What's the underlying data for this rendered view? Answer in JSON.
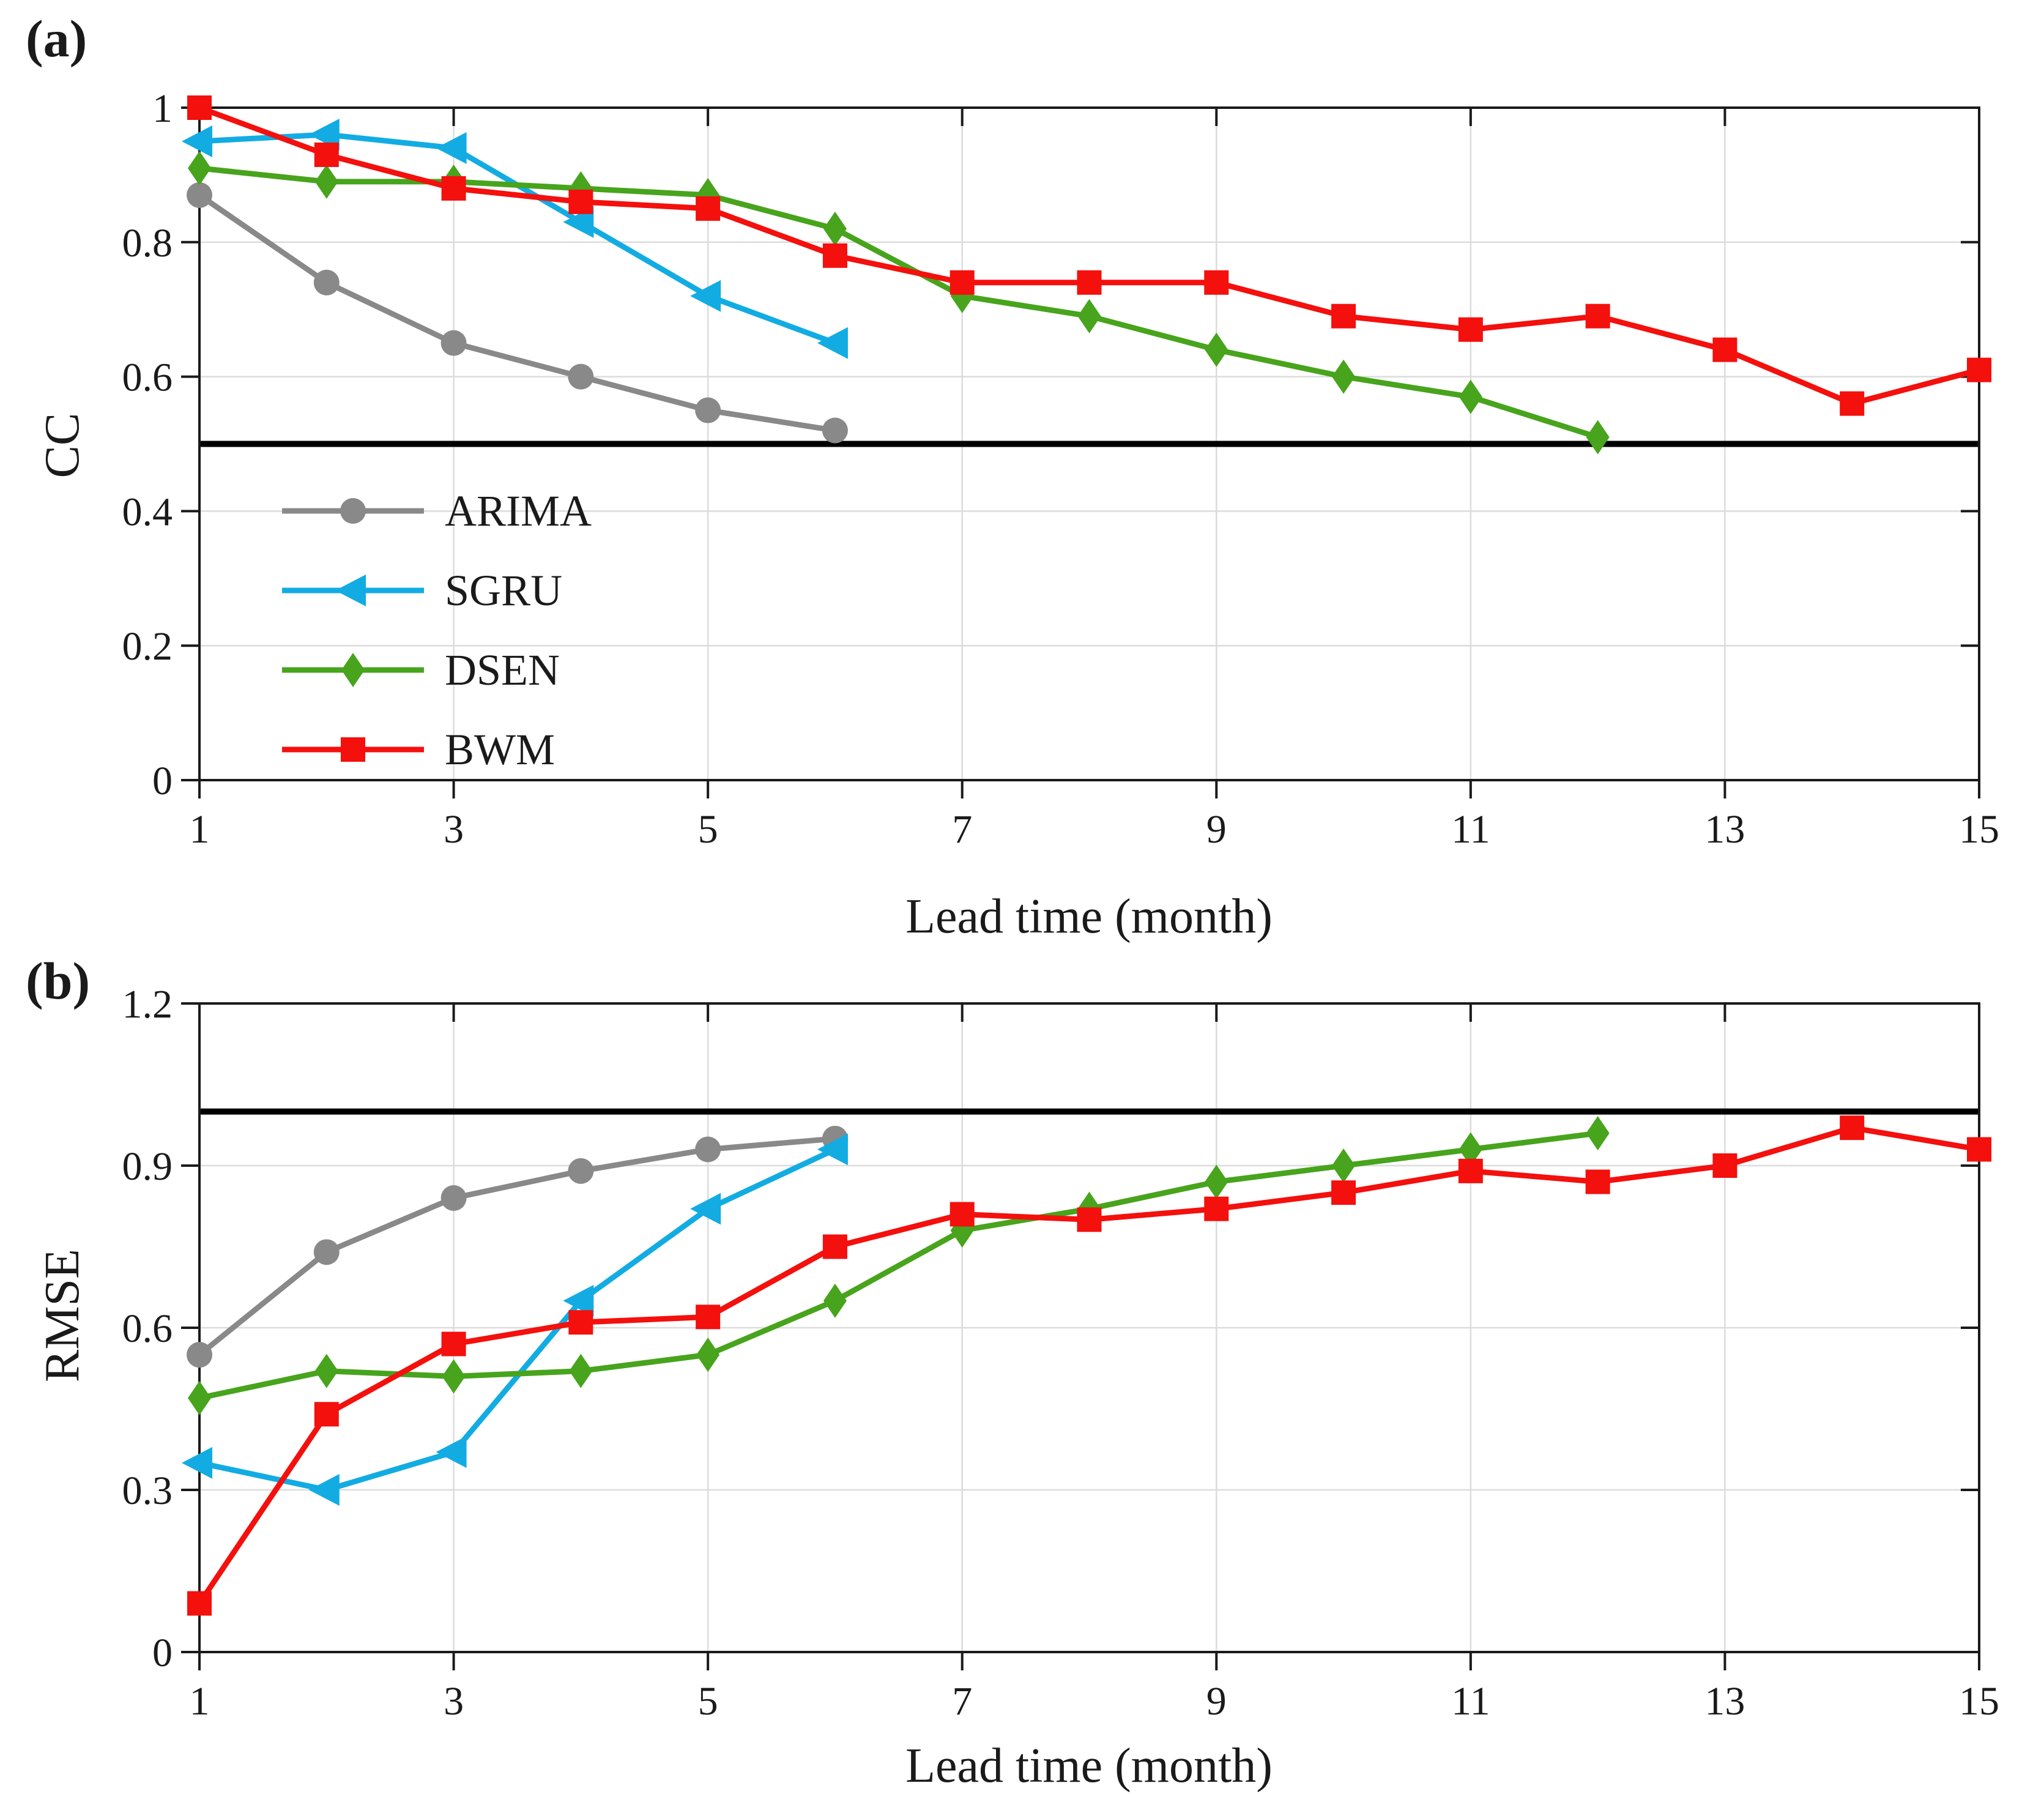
{
  "figure": {
    "background": "#ffffff"
  },
  "panels": [
    {
      "tag": "(a)"
    },
    {
      "tag": "(b)"
    }
  ],
  "legend": {
    "position": "inside-lower-left",
    "entries": [
      "ARIMA",
      "SGRU",
      "DSEN",
      "BWM"
    ]
  },
  "chart_data": [
    {
      "type": "line",
      "panel_label": "(a)",
      "xlabel": "Lead time (month)",
      "ylabel": "CC",
      "xlim": [
        1,
        15
      ],
      "ylim": [
        0,
        1
      ],
      "xticks": [
        1,
        3,
        5,
        7,
        9,
        11,
        13,
        15
      ],
      "yticks": [
        0,
        0.2,
        0.4,
        0.6,
        0.8,
        1
      ],
      "ytick_labels": [
        "0",
        "0.2",
        "0.4",
        "0.6",
        "0.8",
        "1"
      ],
      "grid": true,
      "reference_line_y": 0.5,
      "reference_line_color": "#000000",
      "legend_shown": true,
      "series": [
        {
          "name": "ARIMA",
          "color": "#898989",
          "marker": "circle",
          "x": [
            1,
            2,
            3,
            4,
            5,
            6
          ],
          "values": [
            0.87,
            0.74,
            0.65,
            0.6,
            0.55,
            0.52
          ]
        },
        {
          "name": "SGRU",
          "color": "#12ACE3",
          "marker": "triangle-left",
          "x": [
            1,
            2,
            3,
            4,
            5,
            6
          ],
          "values": [
            0.95,
            0.96,
            0.94,
            0.83,
            0.72,
            0.65
          ]
        },
        {
          "name": "DSEN",
          "color": "#47A41C",
          "marker": "diamond",
          "x": [
            1,
            2,
            3,
            4,
            5,
            6,
            7,
            8,
            9,
            10,
            11,
            12
          ],
          "values": [
            0.91,
            0.89,
            0.89,
            0.88,
            0.87,
            0.82,
            0.72,
            0.69,
            0.64,
            0.6,
            0.57,
            0.51
          ]
        },
        {
          "name": "BWM",
          "color": "#F3100D",
          "marker": "square",
          "x": [
            1,
            2,
            3,
            4,
            5,
            6,
            7,
            8,
            9,
            10,
            11,
            12,
            13,
            14,
            15
          ],
          "values": [
            1.0,
            0.93,
            0.88,
            0.86,
            0.85,
            0.78,
            0.74,
            0.74,
            0.74,
            0.69,
            0.67,
            0.69,
            0.64,
            0.56,
            0.61
          ]
        }
      ]
    },
    {
      "type": "line",
      "panel_label": "(b)",
      "xlabel": "Lead time (month)",
      "ylabel": "RMSE",
      "xlim": [
        1,
        15
      ],
      "ylim": [
        0,
        1.2
      ],
      "xticks": [
        1,
        3,
        5,
        7,
        9,
        11,
        13,
        15
      ],
      "yticks": [
        0,
        0.3,
        0.6,
        0.9,
        1.2
      ],
      "ytick_labels": [
        "0",
        "0.3",
        "0.6",
        "0.9",
        "1.2"
      ],
      "grid": true,
      "reference_line_y": 1.0,
      "reference_line_color": "#000000",
      "legend_shown": false,
      "series": [
        {
          "name": "ARIMA",
          "color": "#898989",
          "marker": "circle",
          "x": [
            1,
            2,
            3,
            4,
            5,
            6
          ],
          "values": [
            0.55,
            0.74,
            0.84,
            0.89,
            0.93,
            0.95
          ]
        },
        {
          "name": "SGRU",
          "color": "#12ACE3",
          "marker": "triangle-left",
          "x": [
            1,
            2,
            3,
            4,
            5,
            6
          ],
          "values": [
            0.35,
            0.3,
            0.37,
            0.65,
            0.82,
            0.93
          ]
        },
        {
          "name": "DSEN",
          "color": "#47A41C",
          "marker": "diamond",
          "x": [
            1,
            2,
            3,
            4,
            5,
            6,
            7,
            8,
            9,
            10,
            11,
            12
          ],
          "values": [
            0.47,
            0.52,
            0.51,
            0.52,
            0.55,
            0.65,
            0.78,
            0.82,
            0.87,
            0.9,
            0.93,
            0.96
          ]
        },
        {
          "name": "BWM",
          "color": "#F3100D",
          "marker": "square",
          "x": [
            1,
            2,
            3,
            4,
            5,
            6,
            7,
            8,
            9,
            10,
            11,
            12,
            13,
            14,
            15
          ],
          "values": [
            0.09,
            0.44,
            0.57,
            0.61,
            0.62,
            0.75,
            0.81,
            0.8,
            0.82,
            0.85,
            0.89,
            0.87,
            0.9,
            0.97,
            0.93
          ]
        }
      ]
    }
  ]
}
